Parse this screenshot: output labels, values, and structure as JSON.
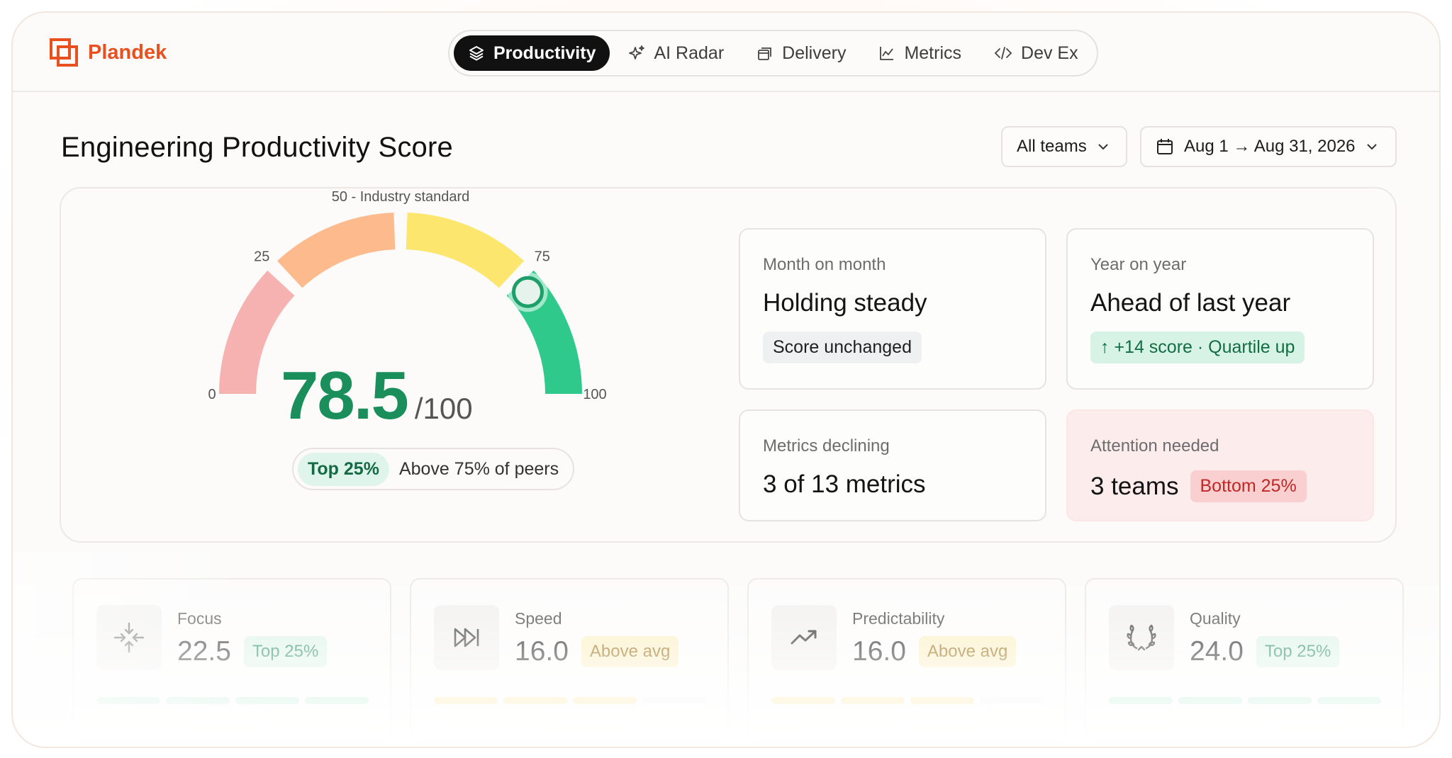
{
  "brand": {
    "name": "Plandek"
  },
  "nav": [
    {
      "label": "Productivity",
      "icon": "layers-icon",
      "active": true
    },
    {
      "label": "AI Radar",
      "icon": "sparkle-icon",
      "active": false
    },
    {
      "label": "Delivery",
      "icon": "stack-icon",
      "active": false
    },
    {
      "label": "Metrics",
      "icon": "line-chart-icon",
      "active": false
    },
    {
      "label": "Dev Ex",
      "icon": "code-icon",
      "active": false
    }
  ],
  "page": {
    "title": "Engineering Productivity Score"
  },
  "filters": {
    "teams": "All teams",
    "date_range": "Aug 1 → Aug 31, 2026"
  },
  "gauge": {
    "min_label": "0",
    "q1_label": "25",
    "mid_label": "50 - Industry standard",
    "q3_label": "75",
    "max_label": "100",
    "value": 78.5,
    "max": 100,
    "score": "78.5",
    "score_max": "/100",
    "peer_badge": "Top 25%",
    "peer_text": "Above 75% of peers",
    "colors": {
      "red": "#f6b2b0",
      "orange": "#fdbb8d",
      "yellow": "#fce66d",
      "green": "#2fc98b"
    }
  },
  "stats": {
    "month": {
      "label": "Month on month",
      "value": "Holding steady",
      "tag": "Score unchanged"
    },
    "year": {
      "label": "Year on year",
      "value": "Ahead of last year",
      "tag": "↑ +14 score · Quartile up"
    },
    "declining": {
      "label": "Metrics declining",
      "value": "3 of 13 metrics"
    },
    "attention": {
      "label": "Attention needed",
      "value": "3 teams",
      "tag": "Bottom 25%"
    }
  },
  "metrics": [
    {
      "label": "Focus",
      "value": "22.5",
      "badge": "Top 25%",
      "icon": "converge-icon",
      "level": 4
    },
    {
      "label": "Speed",
      "value": "16.0",
      "badge": "Above avg",
      "icon": "fast-forward-icon",
      "level": 3
    },
    {
      "label": "Predictability",
      "value": "16.0",
      "badge": "Above avg",
      "icon": "trending-up-icon",
      "level": 3
    },
    {
      "label": "Quality",
      "value": "24.0",
      "badge": "Top 25%",
      "icon": "laurel-icon",
      "level": 4
    }
  ]
}
